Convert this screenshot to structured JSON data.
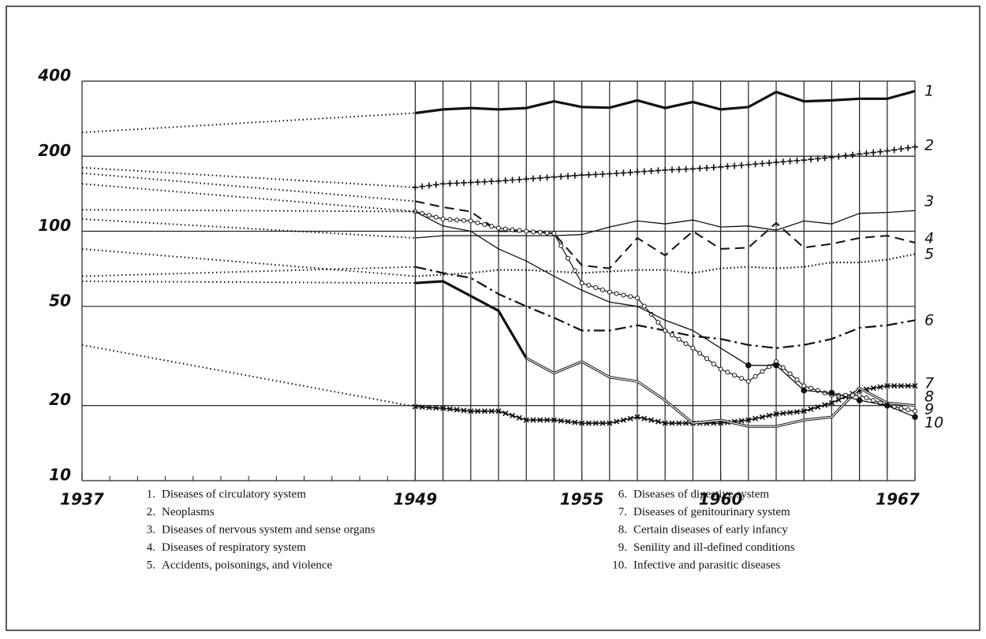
{
  "chart_data": {
    "type": "line",
    "log_y": true,
    "x": [
      1937,
      1949,
      1950,
      1951,
      1952,
      1953,
      1954,
      1955,
      1956,
      1957,
      1958,
      1959,
      1960,
      1961,
      1962,
      1963,
      1964,
      1965,
      1966,
      1967
    ],
    "xlim": [
      1937,
      1967
    ],
    "xticks": [
      1937,
      1949,
      1955,
      1960,
      1967
    ],
    "xminorticks": [
      1938,
      1939,
      1940,
      1941,
      1942,
      1943,
      1944,
      1945,
      1946,
      1947,
      1948
    ],
    "ylim": [
      10,
      400
    ],
    "yticks": [
      10,
      20,
      50,
      100,
      200,
      400
    ],
    "color": "#111111",
    "series": [
      {
        "label": "1",
        "legend_label": "1.",
        "name": "Diseases of circulatory system",
        "values": [
          249,
          298,
          308,
          312,
          308,
          312,
          332,
          315,
          313,
          335,
          312,
          330,
          308,
          315,
          362,
          332,
          335,
          340,
          340,
          365
        ]
      },
      {
        "label": "2",
        "legend_label": "2.",
        "name": "Neoplasms",
        "values": [
          180,
          150,
          155,
          157,
          159,
          162,
          165,
          168,
          170,
          173,
          176,
          178,
          181,
          185,
          189,
          193,
          198,
          204,
          210,
          218
        ]
      },
      {
        "label": "3",
        "legend_label": "3.",
        "name": "Diseases of nervous system and sense organs",
        "values": [
          112,
          94,
          96,
          96,
          96,
          96,
          96,
          97,
          104,
          110,
          107,
          111,
          104,
          105,
          101,
          110,
          107,
          118,
          119,
          121
        ]
      },
      {
        "label": "4",
        "legend_label": "4.",
        "name": "Diseases of respiratory system",
        "values": [
          171,
          132,
          125,
          120,
          100,
          100,
          98,
          73,
          71,
          94,
          80,
          100,
          85,
          86,
          108,
          86,
          89,
          94,
          96,
          90
        ]
      },
      {
        "label": "5",
        "legend_label": "5.",
        "name": "Accidents, poisonings, and violence",
        "values": [
          85,
          66,
          67,
          68,
          70,
          70,
          69,
          68,
          69,
          70,
          70,
          68,
          71,
          72,
          71,
          72,
          75,
          75,
          77,
          81
        ]
      },
      {
        "label": "6",
        "legend_label": "6.",
        "name": "Diseases of digestive system",
        "values": [
          66,
          72,
          68,
          65,
          56,
          50,
          45,
          40,
          40,
          42,
          40,
          38,
          37,
          35,
          34,
          35,
          37,
          41,
          42,
          44
        ]
      },
      {
        "label": "7",
        "legend_label": "7.",
        "name": "Diseases of genitourinary system",
        "values": [
          35,
          19.8,
          19.5,
          19,
          19,
          17.5,
          17.5,
          17,
          17,
          18,
          17,
          17,
          17,
          17.5,
          18.5,
          19,
          20.5,
          23,
          24,
          24
        ]
      },
      {
        "label": "8",
        "legend_label": "8.",
        "name": "Certain diseases of early infancy",
        "values": [
          63,
          62,
          63,
          55,
          48,
          31,
          27,
          30,
          26,
          25,
          21,
          17,
          17.5,
          16.5,
          16.5,
          17.5,
          18,
          23.5,
          20.5,
          20
        ]
      },
      {
        "label": "9",
        "legend_label": "9.",
        "name": "Senility and ill-defined conditions",
        "values": [
          155,
          120,
          112,
          110,
          103,
          100,
          98,
          62,
          57,
          54,
          40,
          34,
          28,
          25,
          30,
          24,
          22,
          22,
          20,
          19
        ]
      },
      {
        "label": "10",
        "legend_label": "10.",
        "name": "Infective and parasitic diseases",
        "values": [
          122,
          120,
          105,
          100,
          85,
          76,
          66,
          58,
          52,
          50,
          44,
          40,
          34,
          29,
          29,
          23,
          22.5,
          21,
          20,
          18
        ]
      }
    ]
  }
}
